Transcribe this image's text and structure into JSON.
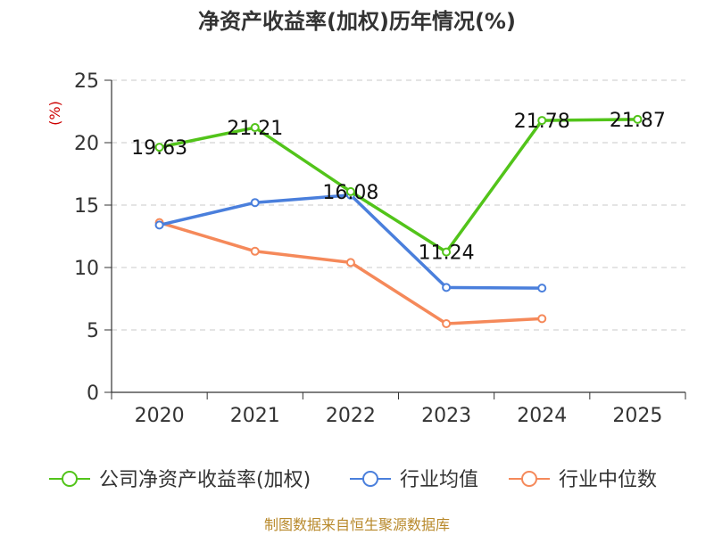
{
  "chart_data": {
    "type": "line",
    "title": "净资产收益率(加权)历年情况(%)",
    "ylabel": "(%)",
    "xlabel": "",
    "categories": [
      "2020",
      "2021",
      "2022",
      "2023",
      "2024",
      "2025"
    ],
    "ylim": [
      0,
      25
    ],
    "yticks": [
      0,
      5,
      10,
      15,
      20,
      25
    ],
    "grid": "horizontal-dashed",
    "legend_position": "bottom",
    "series": [
      {
        "name": "公司净资产收益率(加权)",
        "color": "#52c41a",
        "values": [
          19.63,
          21.21,
          16.08,
          11.24,
          21.78,
          21.87
        ],
        "labels": [
          "19.63",
          "21.21",
          "16.08",
          "11.24",
          "21.78",
          "21.87"
        ]
      },
      {
        "name": "行业均值",
        "color": "#4a7fdc",
        "values": [
          13.4,
          15.2,
          15.8,
          8.4,
          8.35,
          null
        ]
      },
      {
        "name": "行业中位数",
        "color": "#f5895a",
        "values": [
          13.6,
          11.3,
          10.4,
          5.5,
          5.9,
          null
        ]
      }
    ]
  },
  "footer": {
    "source": "制图数据来自恒生聚源数据库"
  }
}
